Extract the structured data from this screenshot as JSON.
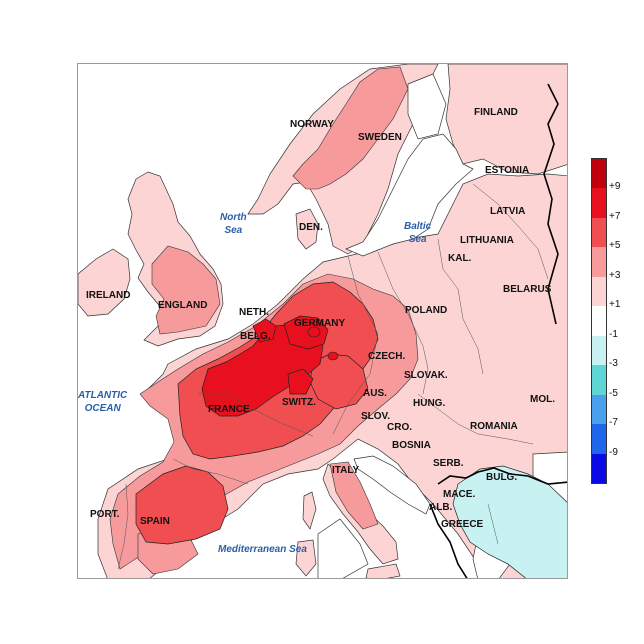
{
  "countries": [
    {
      "id": "norway",
      "label": "NORWAY"
    },
    {
      "id": "sweden",
      "label": "SWEDEN"
    },
    {
      "id": "finland",
      "label": "FINLAND"
    },
    {
      "id": "estonia",
      "label": "ESTONIA"
    },
    {
      "id": "latvia",
      "label": "LATVIA"
    },
    {
      "id": "lithuania",
      "label": "LITHUANIA"
    },
    {
      "id": "kal",
      "label": "KAL."
    },
    {
      "id": "belarus",
      "label": "BELARUS"
    },
    {
      "id": "den",
      "label": "DEN."
    },
    {
      "id": "ireland",
      "label": "IRELAND"
    },
    {
      "id": "england",
      "label": "ENGLAND"
    },
    {
      "id": "neth",
      "label": "NETH."
    },
    {
      "id": "belg",
      "label": "BELG."
    },
    {
      "id": "germany",
      "label": "GERMANY"
    },
    {
      "id": "poland",
      "label": "POLAND"
    },
    {
      "id": "czech",
      "label": "CZECH."
    },
    {
      "id": "slovak",
      "label": "SLOVAK."
    },
    {
      "id": "aus",
      "label": "AUS."
    },
    {
      "id": "france",
      "label": "FRANCE"
    },
    {
      "id": "switz",
      "label": "SWITZ."
    },
    {
      "id": "hung",
      "label": "HUNG."
    },
    {
      "id": "mol",
      "label": "MOL."
    },
    {
      "id": "slov",
      "label": "SLOV."
    },
    {
      "id": "cro",
      "label": "CRO."
    },
    {
      "id": "romania",
      "label": "ROMANIA"
    },
    {
      "id": "bosnia",
      "label": "BOSNIA"
    },
    {
      "id": "serb",
      "label": "SERB."
    },
    {
      "id": "bulg",
      "label": "BULG."
    },
    {
      "id": "italy",
      "label": "ITALY"
    },
    {
      "id": "mace",
      "label": "MACE."
    },
    {
      "id": "alb",
      "label": "ALB."
    },
    {
      "id": "greece",
      "label": "GREECE"
    },
    {
      "id": "port",
      "label": "PORT."
    },
    {
      "id": "spain",
      "label": "SPAIN"
    }
  ],
  "seas": [
    {
      "id": "north-sea",
      "label": "North\nSea"
    },
    {
      "id": "baltic-sea",
      "label": "Baltic\nSea"
    },
    {
      "id": "atlantic-ocean",
      "label": "ATLANTIC\nOCEAN"
    },
    {
      "id": "mediterranean-sea",
      "label": "Mediterranean Sea"
    }
  ],
  "legend": {
    "ticks": [
      "+9",
      "+7",
      "+5",
      "+3",
      "+1",
      "-1",
      "-3",
      "-5",
      "-7",
      "-9"
    ],
    "bands": [
      {
        "range": "above +9",
        "color": "#c0000c"
      },
      {
        "range": "+7 to +9",
        "color": "#e8101e"
      },
      {
        "range": "+5 to +7",
        "color": "#f04e50"
      },
      {
        "range": "+3 to +5",
        "color": "#f79a9c"
      },
      {
        "range": "+1 to +3",
        "color": "#fcd4d4"
      },
      {
        "range": "-1 to +1",
        "color": "#ffffff"
      },
      {
        "range": "-3 to -1",
        "color": "#c8f2f2"
      },
      {
        "range": "-5 to -3",
        "color": "#5ed6d6"
      },
      {
        "range": "-7 to -5",
        "color": "#4aa0ec"
      },
      {
        "range": "-9 to -7",
        "color": "#1f66ec"
      },
      {
        "range": "below -9",
        "color": "#0a0ae6"
      }
    ]
  }
}
